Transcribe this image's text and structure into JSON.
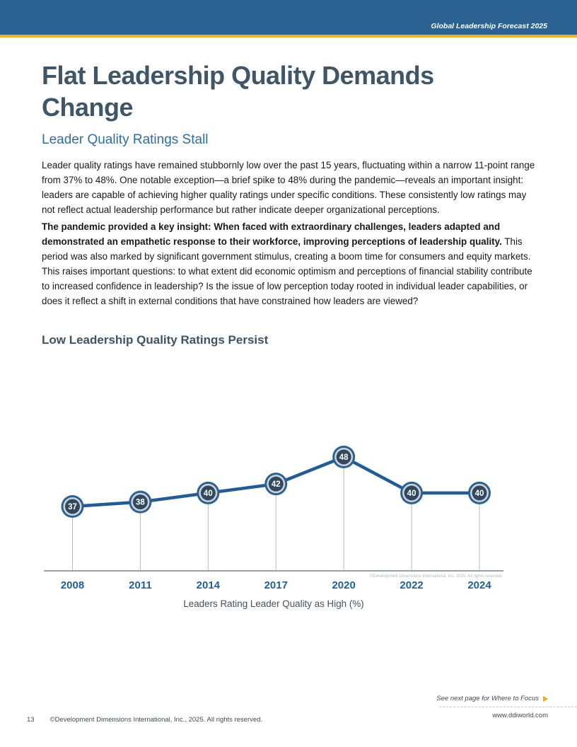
{
  "header": {
    "brand": "Global Leadership Forecast 2025"
  },
  "title": "Flat Leadership Quality Demands Change",
  "subtitle": "Leader Quality Ratings Stall",
  "paragraphs": {
    "p1": "Leader quality ratings have remained stubbornly low over the past 15 years, fluctuating within a narrow 11-point range from 37% to 48%. One notable exception—a brief spike to 48% during the pandemic—reveals an important insight: leaders are capable of achieving higher quality ratings under specific conditions. These consistently low ratings may not reflect actual leadership performance but rather indicate deeper organizational perceptions.",
    "p2_bold": "The pandemic provided a key insight: When faced with extraordinary challenges, leaders adapted and demonstrated an empathetic response to their workforce, improving perceptions of leadership quality.",
    "p2_rest": "This period was also marked by significant government stimulus, creating a boom time for consumers and equity markets. This raises important questions: to what extent did economic optimism and perceptions of financial stability contribute to increased confidence in leadership? Is the issue of low perception today rooted in individual leader capabilities, or does it reflect a shift in external conditions that have constrained how leaders are viewed?"
  },
  "section_heading": "Low Leadership Quality Ratings Persist",
  "chart_data": {
    "type": "line",
    "title": "Low Leadership Quality Ratings Persist",
    "categories": [
      "2008",
      "2011",
      "2014",
      "2017",
      "2020",
      "2022",
      "2024"
    ],
    "values": [
      37,
      38,
      40,
      42,
      48,
      40,
      40
    ],
    "caption": "Leaders Rating Leader Quality as High (%)",
    "copyright_note": "©Development Dimensions International, Inc. 2025. All rights reserved.",
    "y_axis_visible": false,
    "data_labels": "inside circular markers",
    "value_range_shown": [
      37,
      48
    ],
    "legend": "none"
  },
  "footer": {
    "next_note": "See next page for Where to Focus",
    "page_number": "13",
    "copyright": "©Development Dimensions International, Inc., 2025. All rights reserved.",
    "website": "www.ddiworld.com"
  },
  "colors": {
    "header_bar": "#2b6292",
    "accent_gold": "#efb32a",
    "title_text": "#3f5668",
    "subtitle_text": "#2d6ea7",
    "chart_line": "#1f5c99",
    "marker_outer_ring": "#2c6193",
    "marker_inner_ring": "#ccd6dd",
    "marker_center": "#33485b",
    "marker_value_text": "#ffffff",
    "axis_label_text": "#1d5f9c",
    "axis_line": "#9aa2aa",
    "drop_line": "#b4bbc1",
    "chart_copyright_text": "#b3b9c0",
    "caption_text": "#42505c",
    "arrow": "#f2a71f"
  }
}
